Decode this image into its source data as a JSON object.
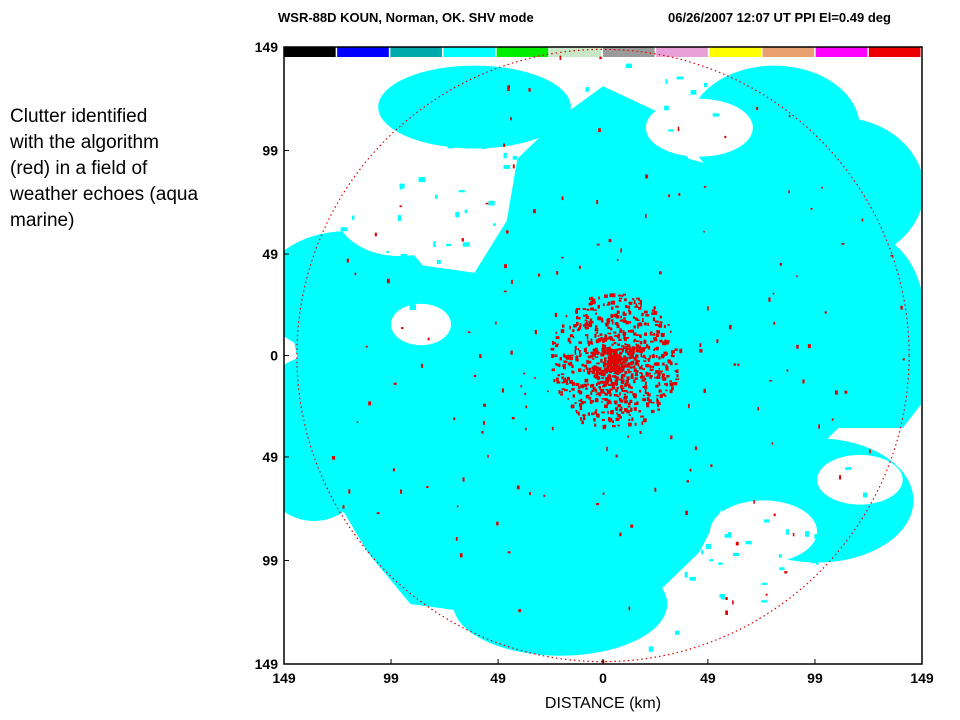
{
  "caption": {
    "lines": [
      "Clutter identified",
      "with the algorithm",
      "(red) in a field of",
      "weather echoes (aqua",
      "marine)"
    ]
  },
  "header": {
    "left": "WSR-88D  KOUN, Norman, OK.  SHV mode",
    "right": "06/26/2007  12:07 UT  PPI   El=0.49 deg"
  },
  "colors": {
    "weather": "#00ffff",
    "clutter": "#e00000",
    "ring": "#e00000",
    "legend": [
      "#000000",
      "#0000ff",
      "#00aaaa",
      "#00ffff",
      "#00ee00",
      "#c8e8c8",
      "#9a9a9a",
      "#e8a0d8",
      "#ffff00",
      "#e8a070",
      "#ff00ff",
      "#ee0000"
    ]
  },
  "chart_data": {
    "type": "heatmap",
    "title": "WSR-88D  KOUN, Norman, OK.  SHV mode    06/26/2007  12:07 UT  PPI   El=0.49 deg",
    "xlabel": "DISTANCE (km)",
    "ylabel": "",
    "x_ticks": [
      "149",
      "99",
      "49",
      "0",
      "49",
      "99",
      "149"
    ],
    "y_ticks": [
      "149",
      "99",
      "49",
      "0",
      "49",
      "99",
      "149"
    ],
    "xlim": [
      -149,
      149
    ],
    "ylim": [
      -149,
      149
    ],
    "legend_bins": 12,
    "range_ring_km": 143,
    "series": [
      {
        "category": "weather echoes",
        "color": "#00ffff"
      },
      {
        "category": "clutter",
        "color": "#e00000",
        "concentration": "near radar center, within about 30 km"
      }
    ]
  }
}
